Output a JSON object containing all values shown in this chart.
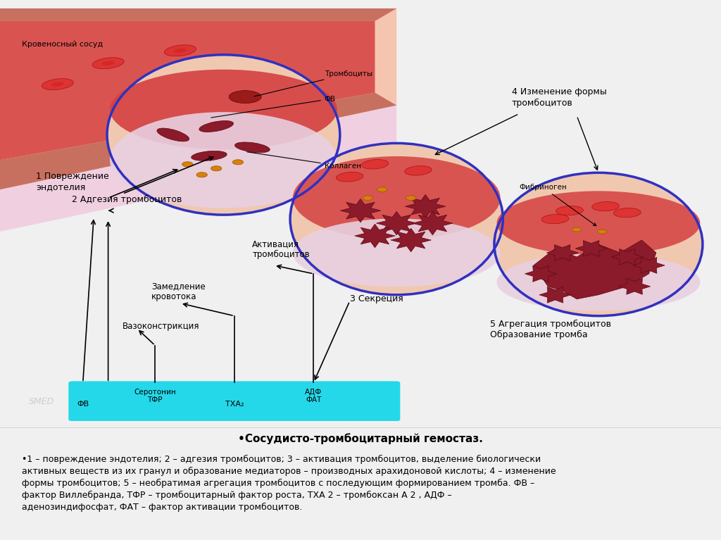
{
  "bg_color": "#f0f0f0",
  "diagram_bg": "#ffffff",
  "text_panel_bg": "#ffffff",
  "title_text": "•Сосудисто-тромбоцитарный гемостаз.",
  "body_text": "•1 – повреждение эндотелия; 2 – адгезия тромбоцитов; 3 – активация тромбоцитов, выделение биологически\naктивных веществ из их гранул и образование медиаторов – производных арахидоновой кислоты; 4 – изменение\nформы тромбоцитов; 5 – необратимая агрегация тромбоцитов с последующим формированием тромба. ФВ –\nфактор Виллебранда, ТФР – тромбоцитарный фактор роста, ТХА 2 – тромбоксан А 2 , АДФ –\nаденозиндифосфат, ФАТ – фактор активации тромбоцитов.",
  "vessel_color": "#e8a090",
  "vessel_wall_color": "#c97060",
  "blood_color": "#d44040",
  "collagen_color": "#e8c8d8",
  "platelet_color": "#8b1a1a",
  "rbc_color": "#c83030",
  "granule_color": "#d4820a",
  "fibrinogen_text": "Фибриноген",
  "label1": "1 Повреждение\nэндотелия",
  "label2": "2 Адгезия тромбоцитов",
  "label3": "3 Секреция",
  "label4": "4 Изменение формы\nтромбоцитов",
  "label5": "5 Агрегация тромбоцитов\nОбразование тромба",
  "label_vessel": "Кровеносный сосуд",
  "label_thrombocytes": "Тромбоциты",
  "label_fv": "ФВ",
  "label_collagen": "Коллаген",
  "label_activation": "Активация\nтромбоцитов",
  "label_slowdown": "Замедление\nкровотока",
  "label_vasoconstriction": "Вазоконстрикция",
  "label_fv_bottom": "ФВ",
  "label_serotonin": "Серотонин\nТФР",
  "label_txa": "ТХА₂",
  "label_adf": "АДФ\nФАТ",
  "cyan_box_color": "#00d4e8",
  "arrow_color": "#1a1a1a",
  "circle_outline_color": "#3030c0",
  "font_size_labels": 9,
  "font_size_title": 11,
  "font_size_body": 9
}
